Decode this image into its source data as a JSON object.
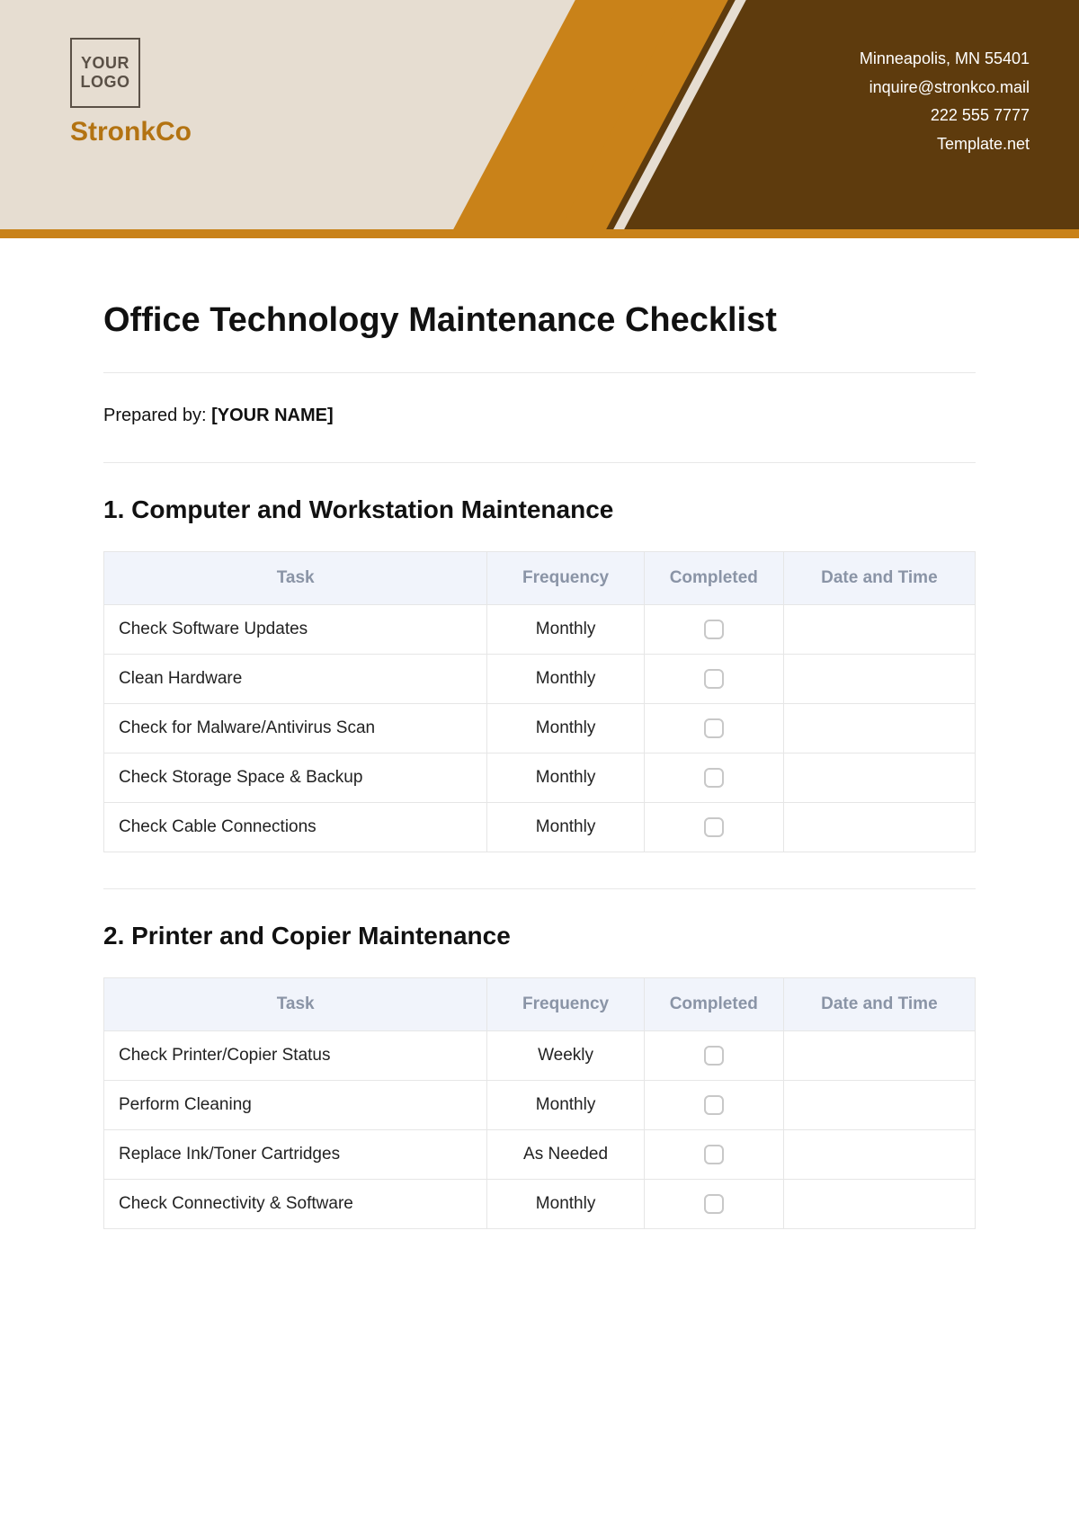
{
  "header": {
    "logo_text": "YOUR LOGO",
    "company_name": "StronkCo",
    "contact": {
      "address": "Minneapolis, MN 55401",
      "email": "inquire@stronkco.mail",
      "phone": "222 555 7777",
      "site": "Template.net"
    },
    "colors": {
      "bg": "#e6ddd1",
      "orange": "#c98219",
      "brown": "#5e3b0d",
      "company_text": "#b37312"
    }
  },
  "document": {
    "title": "Office Technology Maintenance Checklist",
    "prepared_label": "Prepared by:",
    "prepared_value": "[YOUR NAME]"
  },
  "columns": {
    "task": "Task",
    "frequency": "Frequency",
    "completed": "Completed",
    "date_time": "Date and Time"
  },
  "sections": [
    {
      "heading": "1. Computer and Workstation Maintenance",
      "rows": [
        {
          "task": "Check Software Updates",
          "frequency": "Monthly"
        },
        {
          "task": "Clean Hardware",
          "frequency": "Monthly"
        },
        {
          "task": "Check for Malware/Antivirus Scan",
          "frequency": "Monthly"
        },
        {
          "task": "Check Storage Space & Backup",
          "frequency": "Monthly"
        },
        {
          "task": "Check Cable Connections",
          "frequency": "Monthly"
        }
      ]
    },
    {
      "heading": "2. Printer and Copier Maintenance",
      "rows": [
        {
          "task": "Check Printer/Copier Status",
          "frequency": "Weekly"
        },
        {
          "task": "Perform Cleaning",
          "frequency": "Monthly"
        },
        {
          "task": "Replace Ink/Toner Cartridges",
          "frequency": "As Needed"
        },
        {
          "task": "Check Connectivity & Software",
          "frequency": "Monthly"
        }
      ]
    }
  ],
  "table_style": {
    "header_bg": "#f1f4fb",
    "header_text": "#8a94a6",
    "border": "#e6e6e6",
    "checkbox_border": "#c8c8c8"
  }
}
